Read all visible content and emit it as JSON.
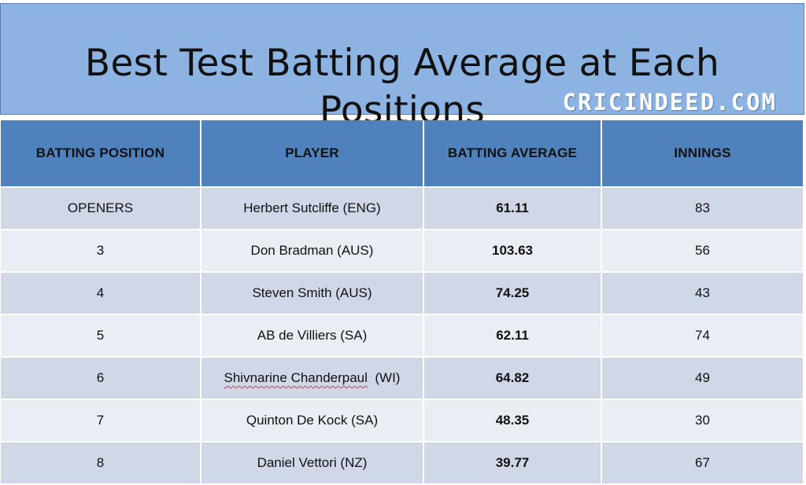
{
  "header": {
    "title": "Best Test Batting Average at Each Positions",
    "watermark": "CRICINDEED.COM"
  },
  "table": {
    "columns": [
      "BATTING POSITION",
      "PLAYER",
      "BATTING AVERAGE",
      "INNINGS"
    ],
    "rows": [
      {
        "position": "OPENERS",
        "player": "Herbert Sutcliffe (ENG)",
        "average": "61.11",
        "innings": "83"
      },
      {
        "position": "3",
        "player": "Don Bradman (AUS)",
        "average": "103.63",
        "innings": "56"
      },
      {
        "position": "4",
        "player": "Steven Smith (AUS)",
        "average": "74.25",
        "innings": "43"
      },
      {
        "position": "5",
        "player": "AB de Villiers (SA)",
        "average": "62.11",
        "innings": "74"
      },
      {
        "position": "6",
        "player_name": "Shivnarine Chanderpaul",
        "player_suffix": "(WI)",
        "average": "64.82",
        "innings": "49"
      },
      {
        "position": "7",
        "player": "Quinton De Kock (SA)",
        "average": "48.35",
        "innings": "30"
      },
      {
        "position": "8",
        "player": "Daniel Vettori (NZ)",
        "average": "39.77",
        "innings": "67"
      }
    ]
  }
}
